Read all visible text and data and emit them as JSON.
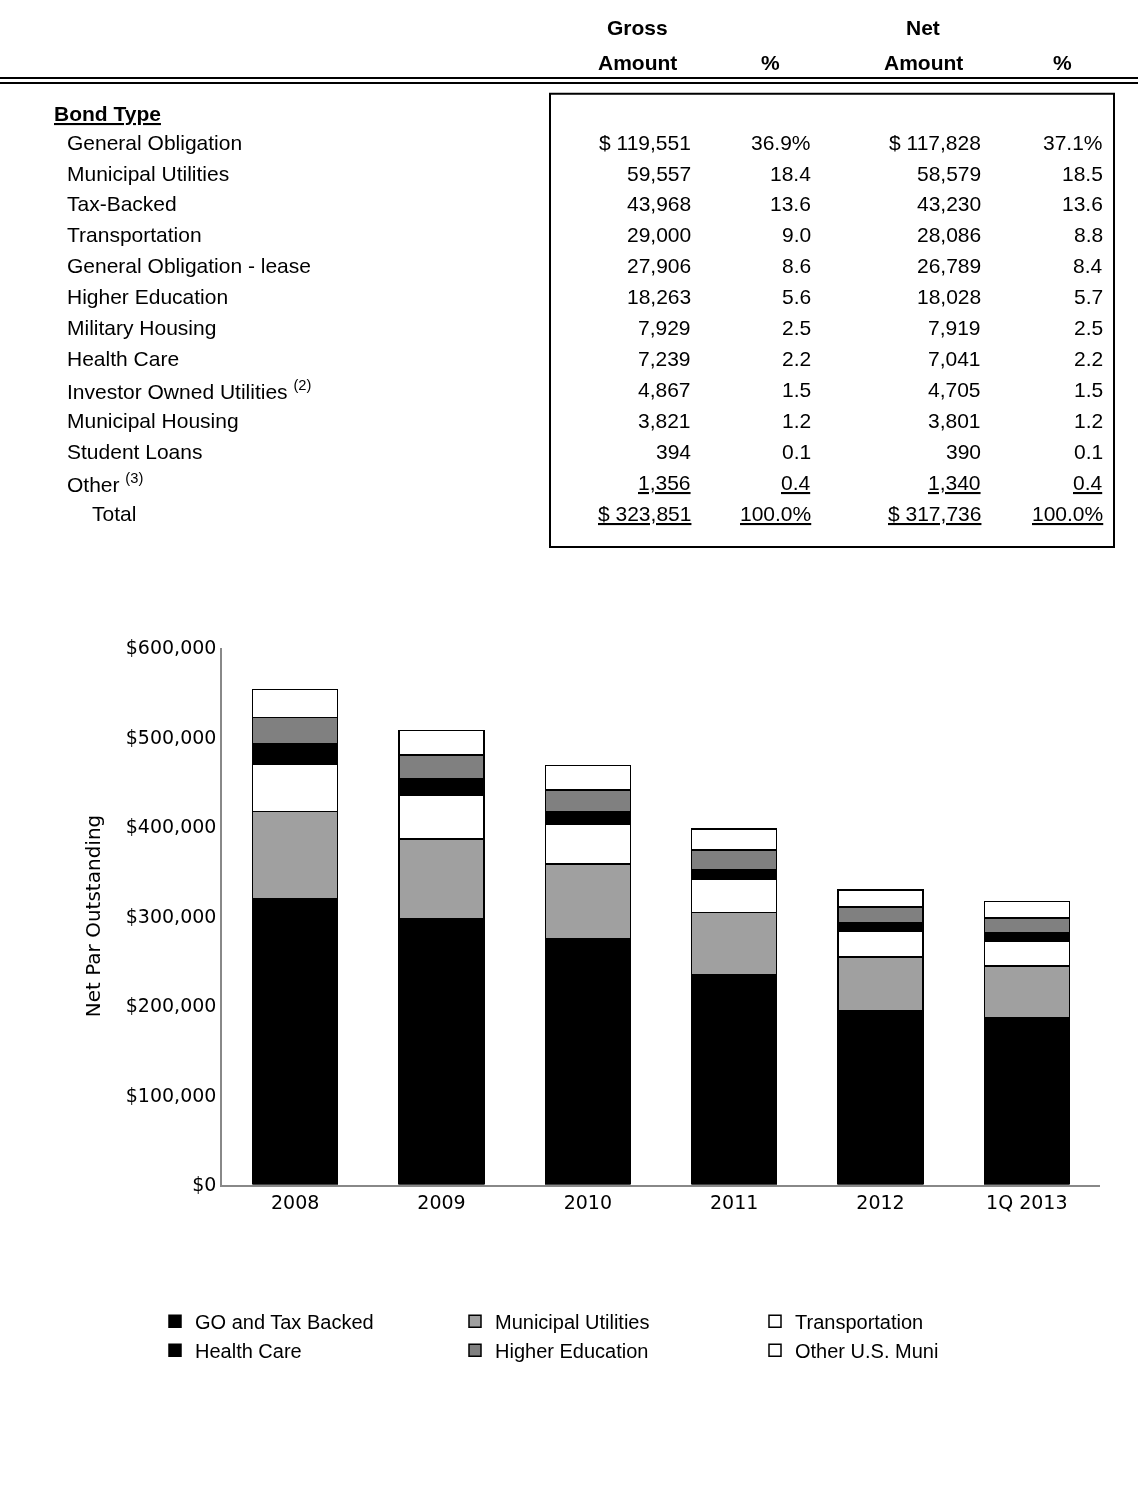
{
  "chart_data": [
    {
      "type": "other",
      "title": "Bond Type",
      "categories": [
        "General Obligation",
        "Municipal Utilities",
        "Tax-Backed",
        "Transportation",
        "General Obligation - lease",
        "Higher Education",
        "Military Housing",
        "Health Care",
        "Investor Owned Utilities $^{(2)}$",
        "Municipal Housing",
        "Student Loans",
        "Other $^{(3)}$",
        "Total"
      ],
      "series": [
        {
          "name": "Gross Amount",
          "values": [
            119551,
            59557,
            43968,
            29000,
            27906,
            18263,
            7929,
            7239,
            4867,
            3821,
            394,
            1356,
            323851
          ],
          "value_labels": [
            "$ 119,551",
            "59,557",
            "43,968",
            "29,000",
            "27,906",
            "18,263",
            "7,929",
            "7,239",
            "4,867",
            "3,821",
            "394",
            "1,356",
            "$ 323,851"
          ]
        },
        {
          "name": "%",
          "values": [
            36.9,
            18.4,
            13.6,
            9.0,
            8.6,
            5.6,
            2.5,
            2.2,
            1.5,
            1.2,
            0.1,
            0.4,
            100.0
          ],
          "value_labels": [
            "36.9%",
            "18.4",
            "13.6",
            "9.0",
            "8.6",
            "5.6",
            "2.5",
            "2.2",
            "1.5",
            "1.2",
            "0.1",
            "0.4",
            "100.0%"
          ]
        },
        {
          "name": "Net Amount",
          "values": [
            117828,
            58579,
            43230,
            28086,
            26789,
            18028,
            7919,
            7041,
            4705,
            3801,
            390,
            1340,
            317736
          ],
          "value_labels": [
            "$ 117,828",
            "58,579",
            "43,230",
            "28,086",
            "26,789",
            "18,028",
            "7,919",
            "7,041",
            "4,705",
            "3,801",
            "390",
            "1,340",
            "$ 317,736"
          ]
        },
        {
          "name": "%",
          "values": [
            37.1,
            18.5,
            13.6,
            8.8,
            8.4,
            5.7,
            2.5,
            2.2,
            1.5,
            1.2,
            0.1,
            0.4,
            100.0
          ],
          "value_labels": [
            "37.1%",
            "18.5",
            "13.6",
            "8.8",
            "8.4",
            "5.7",
            "2.5",
            "2.2",
            "1.5",
            "1.2",
            "0.1",
            "0.4",
            "100.0%"
          ]
        }
      ]
    },
    {
      "type": "bar",
      "stacked": true,
      "ylabel": "Net Par Outstanding",
      "categories": [
        "2008",
        "2009",
        "2010",
        "2011",
        "2012",
        "1Q 2013"
      ],
      "ylim": [
        0,
        600000
      ],
      "yticks": [
        {
          "value": 0,
          "label": "$0"
        },
        {
          "value": 100000,
          "label": "$100,000"
        },
        {
          "value": 200000,
          "label": "$200,000"
        },
        {
          "value": 300000,
          "label": "$300,000"
        },
        {
          "value": 400000,
          "label": "$400,000"
        },
        {
          "value": 500000,
          "label": "$500,000"
        },
        {
          "value": 600000,
          "label": "$600,000"
        }
      ],
      "legend": "bottom",
      "series": [
        {
          "name": "GO and Tax Backed",
          "color": "#000000",
          "values": [
            319000,
            297000,
            275000,
            234000,
            194000,
            186000
          ]
        },
        {
          "name": "Municipal Utilities",
          "color": "#a0a0a0",
          "values": [
            98000,
            89000,
            83000,
            70000,
            60000,
            58000
          ]
        },
        {
          "name": "Transportation",
          "color": "#ffffff",
          "values": [
            53000,
            49000,
            45000,
            37000,
            29000,
            28000
          ]
        },
        {
          "name": "Health Care",
          "color": "#000000",
          "values": [
            23000,
            18000,
            14000,
            11000,
            10000,
            9000
          ]
        },
        {
          "name": "Higher Education",
          "color": "#808080",
          "values": [
            29000,
            27000,
            24000,
            22000,
            17000,
            17000
          ]
        },
        {
          "name": "Other U.S. Muni",
          "color": "#ffffff",
          "values": [
            31000,
            27000,
            27000,
            23000,
            19000,
            18000
          ]
        }
      ]
    }
  ]
}
